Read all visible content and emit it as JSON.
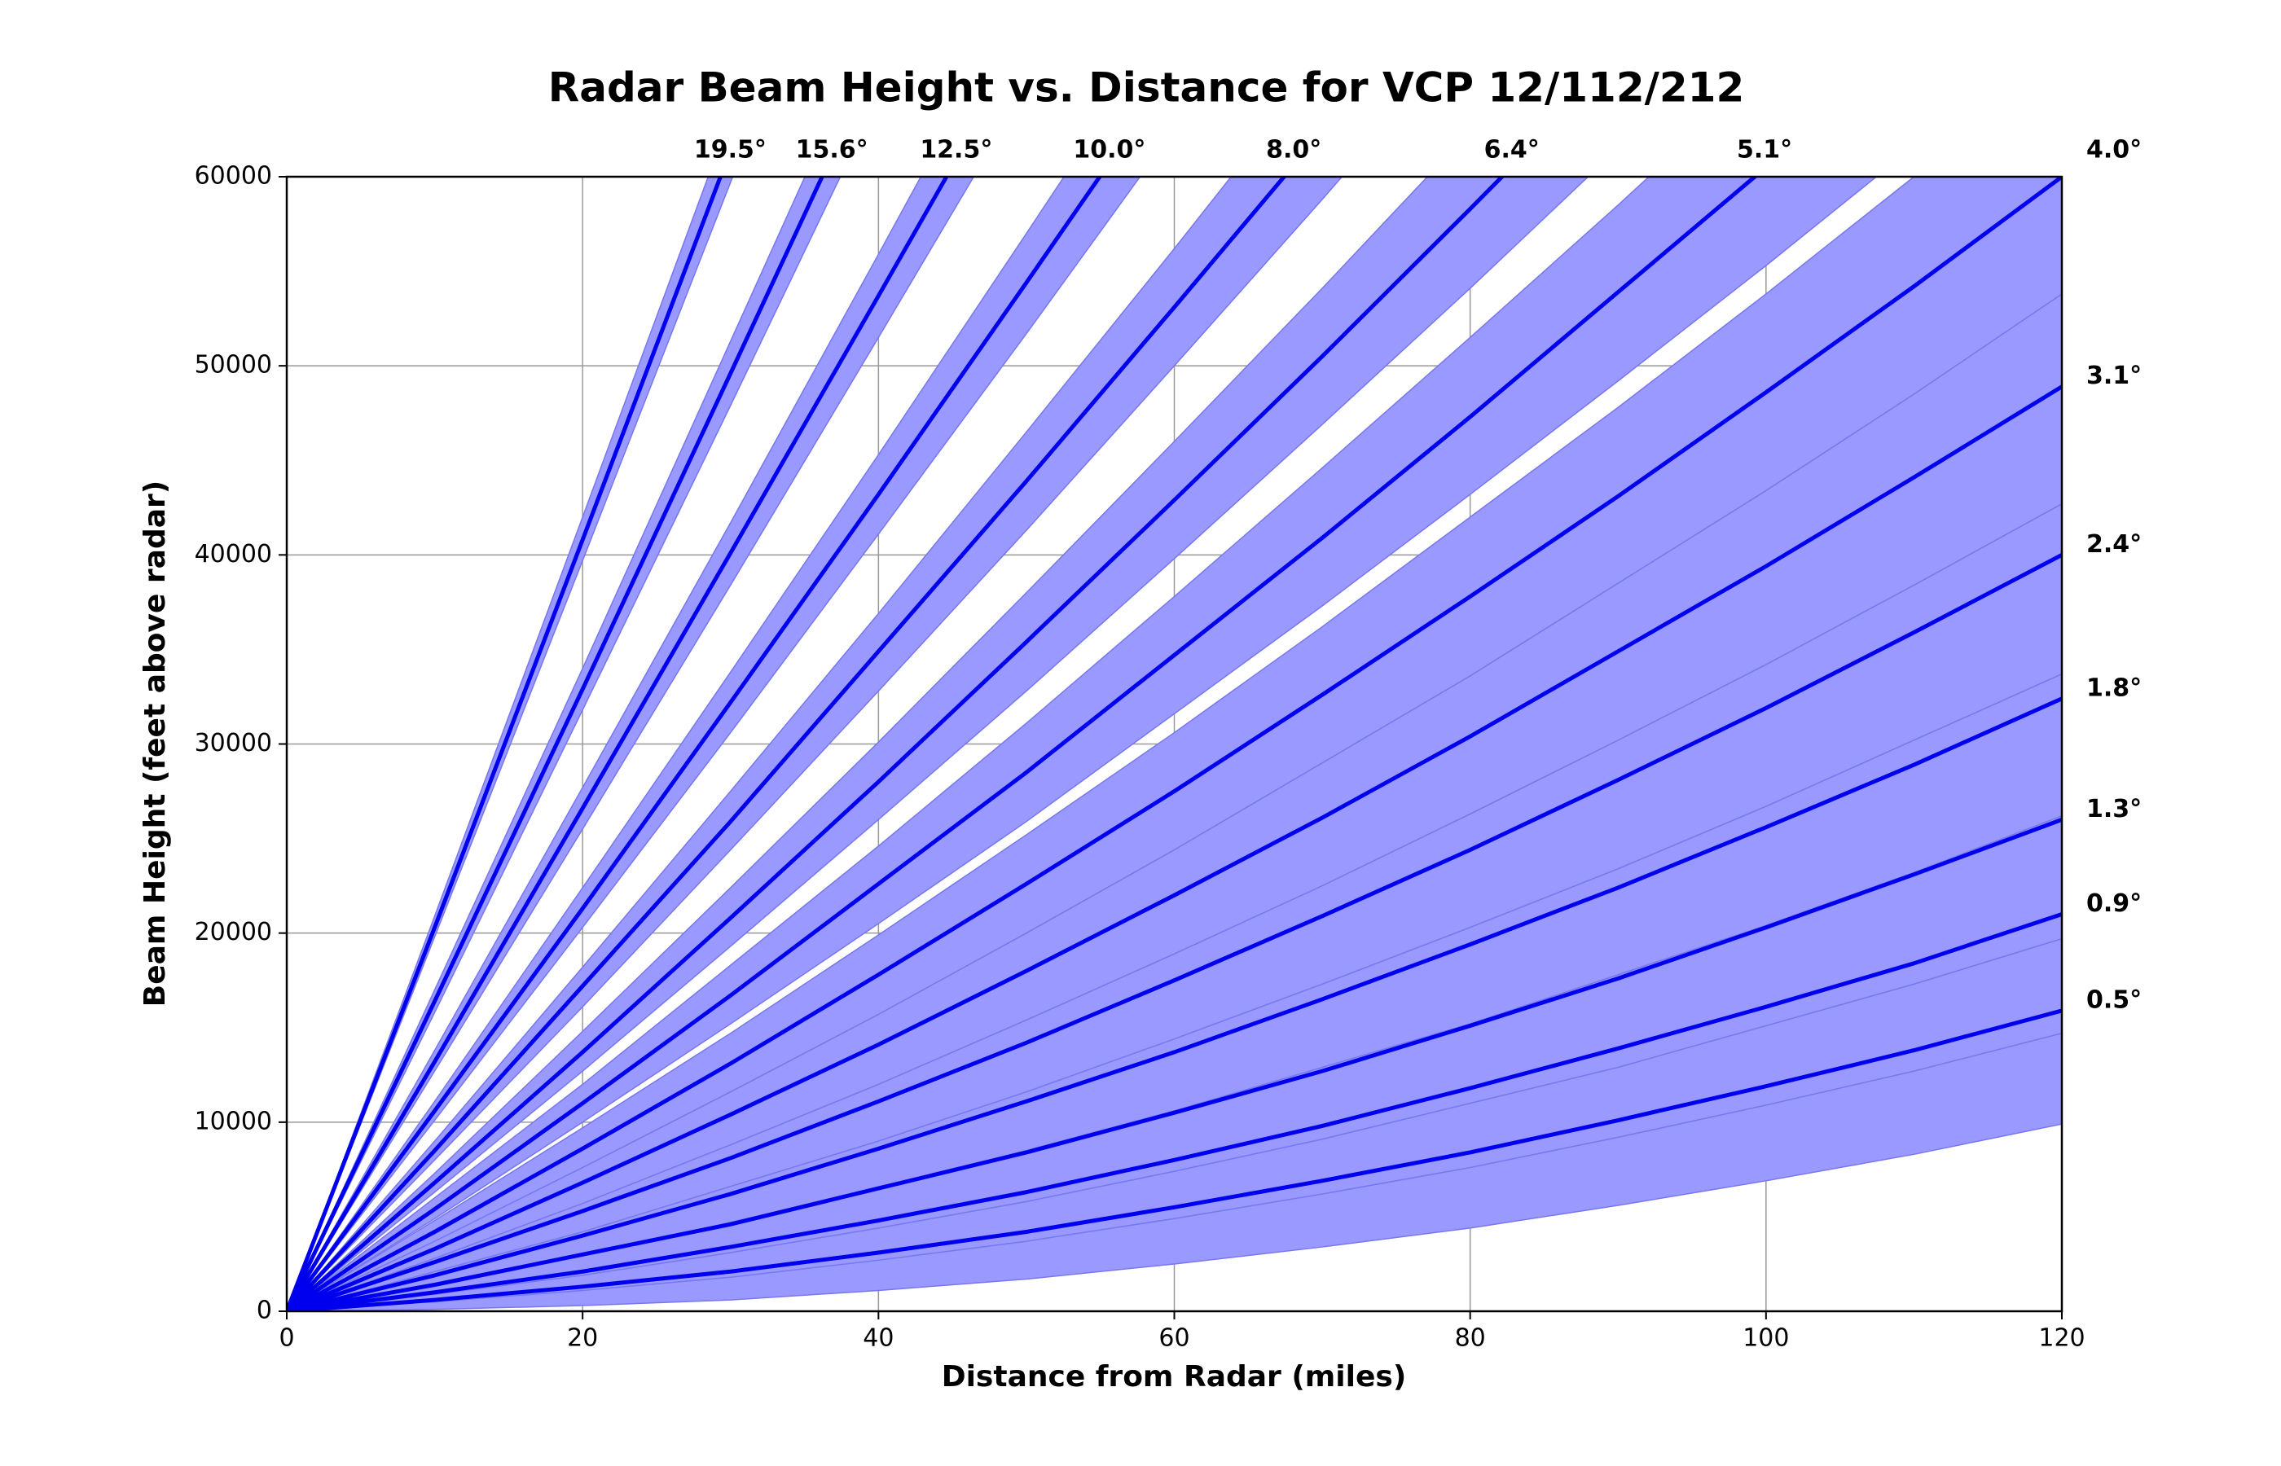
{
  "chart_data": {
    "type": "beam",
    "title": "Radar Beam Height vs. Distance for VCP 12/112/212",
    "x_label": "Distance from Radar (miles)",
    "y_label": "Beam Height (feet above radar)",
    "x": [
      0,
      10,
      20,
      30,
      40,
      50,
      60,
      70,
      80,
      90,
      100,
      110,
      120
    ],
    "xlim": [
      0,
      120
    ],
    "ylim": [
      0,
      60000
    ],
    "xticks": [
      0,
      20,
      40,
      60,
      80,
      100,
      120
    ],
    "yticks": [
      0,
      10000,
      20000,
      30000,
      40000,
      50000,
      60000
    ],
    "grid": true,
    "line_color": "#0000ee",
    "band_color": "#9999ff",
    "band_edge_color": "#7777ee",
    "series": [
      {
        "name": "0.5°",
        "values": [
          0,
          600,
          1300,
          2100,
          3100,
          4200,
          5500,
          6900,
          8400,
          10100,
          11900,
          13800,
          15900
        ],
        "lower": [
          0,
          100,
          300,
          600,
          1100,
          1700,
          2500,
          3400,
          4400,
          5600,
          6900,
          8300,
          9900
        ],
        "upper": [
          0,
          1100,
          2300,
          3700,
          5200,
          6800,
          8600,
          10500,
          12600,
          14800,
          17100,
          19600,
          22200
        ]
      },
      {
        "name": "0.9°",
        "values": [
          0,
          1000,
          2100,
          3400,
          4800,
          6300,
          8000,
          9800,
          11800,
          13900,
          16100,
          18400,
          21000
        ],
        "lower": [
          0,
          500,
          1100,
          1800,
          2700,
          3700,
          4900,
          6200,
          7600,
          9200,
          10900,
          12700,
          14700
        ],
        "upper": [
          0,
          1500,
          3200,
          4900,
          6900,
          8900,
          11100,
          13500,
          15900,
          18500,
          21300,
          24200,
          27200
        ]
      },
      {
        "name": "1.3°",
        "values": [
          0,
          1400,
          3000,
          4600,
          6500,
          8400,
          10500,
          12700,
          15100,
          17600,
          20300,
          23100,
          26000
        ],
        "lower": [
          0,
          900,
          1900,
          3100,
          4400,
          5800,
          7400,
          9100,
          11000,
          12900,
          15100,
          17300,
          19700
        ],
        "upper": [
          0,
          1900,
          4000,
          6200,
          8500,
          11000,
          13600,
          16400,
          19300,
          22300,
          25500,
          28800,
          32200
        ]
      },
      {
        "name": "1.8°",
        "values": [
          0,
          1900,
          4000,
          6200,
          8600,
          11100,
          13700,
          16500,
          19400,
          22400,
          25600,
          28900,
          32400
        ],
        "lower": [
          0,
          1400,
          3000,
          4700,
          6500,
          8500,
          10600,
          12900,
          15200,
          17800,
          20400,
          23200,
          26200
        ],
        "upper": [
          0,
          2500,
          5100,
          7800,
          10700,
          13700,
          16800,
          20100,
          23600,
          27100,
          30800,
          34700,
          38600
        ]
      },
      {
        "name": "2.4°",
        "values": [
          0,
          2600,
          5300,
          8100,
          11100,
          14200,
          17500,
          20900,
          24400,
          28100,
          31900,
          35900,
          40000
        ],
        "lower": [
          0,
          2100,
          4200,
          6600,
          9000,
          11600,
          14400,
          17300,
          20300,
          23400,
          26700,
          30200,
          33700
        ],
        "upper": [
          0,
          3100,
          6300,
          9700,
          13200,
          16800,
          20600,
          24600,
          28600,
          32800,
          37100,
          41600,
          46200
        ]
      },
      {
        "name": "3.1°",
        "values": [
          0,
          3300,
          6800,
          10400,
          14100,
          18000,
          22000,
          26100,
          30400,
          34900,
          39400,
          44100,
          48900
        ],
        "lower": [
          0,
          2800,
          5700,
          8800,
          12000,
          15400,
          18900,
          22500,
          26300,
          30200,
          34200,
          38400,
          42700
        ],
        "upper": [
          0,
          3800,
          7800,
          11900,
          16200,
          20600,
          25100,
          29800,
          34600,
          39500,
          44600,
          49800,
          55200
        ]
      },
      {
        "name": "4.0°",
        "values": [
          0,
          4200,
          8600,
          13100,
          17800,
          22600,
          27500,
          32600,
          37800,
          43100,
          48600,
          54200,
          60000
        ],
        "lower": [
          0,
          3700,
          7600,
          11600,
          15700,
          20000,
          24400,
          29000,
          33600,
          38500,
          43400,
          48500,
          53800
        ],
        "upper": [
          0,
          4800,
          9700,
          14700,
          19900,
          25200,
          30600,
          36200,
          42000,
          47800,
          53800,
          60000,
          66200
        ]
      },
      {
        "name": "5.1°",
        "values": [
          0,
          5400,
          11000,
          16700,
          22600,
          28500,
          34700,
          40900,
          47300,
          53900,
          60500,
          null,
          null
        ],
        "lower": [
          0,
          4900,
          10000,
          15200,
          20500,
          25900,
          31600,
          37300,
          43200,
          49200,
          55300,
          61600,
          null
        ],
        "upper": [
          0,
          6000,
          12000,
          18300,
          24600,
          31100,
          37800,
          44600,
          51500,
          58500,
          65700,
          null,
          null
        ]
      },
      {
        "name": "6.4°",
        "values": [
          0,
          6800,
          13700,
          20800,
          28000,
          35400,
          42900,
          50500,
          58300,
          66200,
          null,
          null,
          null
        ],
        "lower": [
          0,
          6300,
          12700,
          19300,
          26000,
          32800,
          39800,
          46900,
          54100,
          61500,
          null,
          null,
          null
        ],
        "upper": [
          0,
          7300,
          14800,
          22400,
          30100,
          38000,
          46000,
          54100,
          62400,
          null,
          null,
          null,
          null
        ]
      },
      {
        "name": "8.0°",
        "values": [
          0,
          8500,
          17200,
          25900,
          34900,
          43900,
          53100,
          62400,
          null,
          null,
          null,
          null,
          null
        ],
        "lower": [
          0,
          8000,
          16100,
          24400,
          32800,
          41300,
          50000,
          58800,
          67800,
          null,
          null,
          null,
          null
        ],
        "upper": [
          0,
          9000,
          18200,
          27500,
          36900,
          46500,
          56200,
          66100,
          null,
          null,
          null,
          null,
          null
        ]
      },
      {
        "name": "10.0°",
        "values": [
          0,
          10600,
          21300,
          32200,
          43200,
          54400,
          65700,
          null,
          null,
          null,
          null,
          null,
          null
        ],
        "lower": [
          0,
          10100,
          20300,
          30600,
          41100,
          51700,
          62500,
          null,
          null,
          null,
          null,
          null,
          null
        ],
        "upper": [
          0,
          11100,
          22400,
          33800,
          45300,
          57000,
          68800,
          null,
          null,
          null,
          null,
          null,
          null
        ]
      },
      {
        "name": "12.5°",
        "values": [
          0,
          13200,
          26600,
          40100,
          53700,
          67400,
          null,
          null,
          null,
          null,
          null,
          null,
          null
        ],
        "lower": [
          0,
          12700,
          25500,
          38400,
          51500,
          64700,
          null,
          null,
          null,
          null,
          null,
          null,
          null
        ],
        "upper": [
          0,
          13800,
          27700,
          41700,
          55900,
          70200,
          null,
          null,
          null,
          null,
          null,
          null,
          null
        ]
      },
      {
        "name": "15.6°",
        "values": [
          0,
          16400,
          32900,
          49600,
          66400,
          null,
          null,
          null,
          null,
          null,
          null,
          null,
          null
        ],
        "lower": [
          0,
          15800,
          31800,
          47900,
          64200,
          null,
          null,
          null,
          null,
          null,
          null,
          null,
          null
        ],
        "upper": [
          0,
          17000,
          34000,
          51300,
          68600,
          null,
          null,
          null,
          null,
          null,
          null,
          null,
          null
        ]
      },
      {
        "name": "19.5°",
        "values": [
          0,
          20300,
          40800,
          61400,
          null,
          null,
          null,
          null,
          null,
          null,
          null,
          null,
          null
        ],
        "lower": [
          0,
          19800,
          39700,
          59700,
          79900,
          null,
          null,
          null,
          null,
          null,
          null,
          null,
          null
        ],
        "upper": [
          0,
          20900,
          42000,
          63200,
          null,
          null,
          null,
          null,
          null,
          null,
          null,
          null,
          null
        ]
      }
    ]
  }
}
